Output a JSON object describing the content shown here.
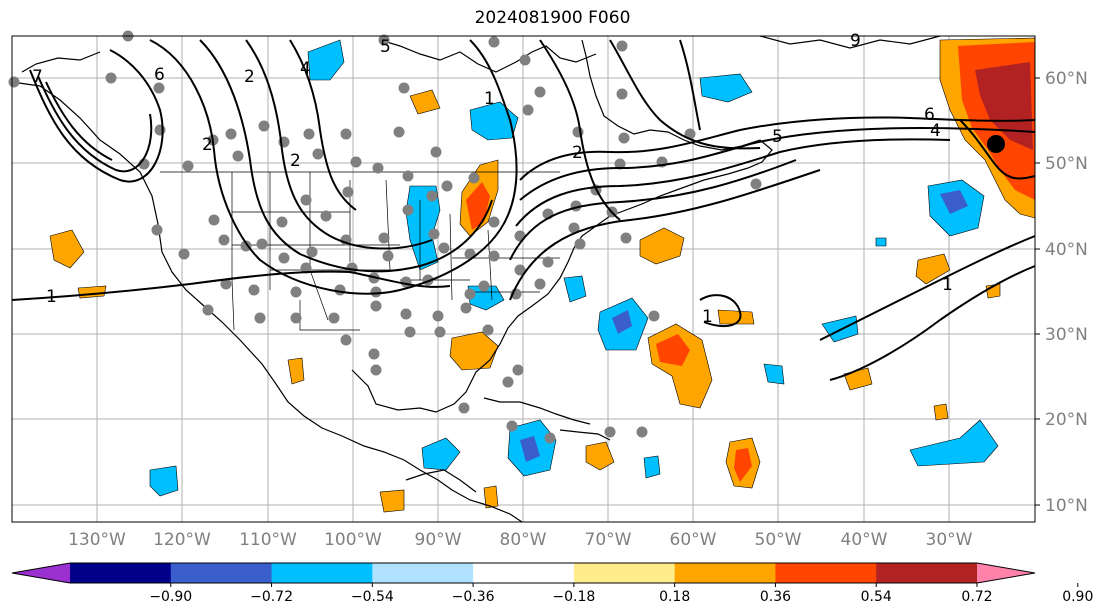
{
  "title": "2024081900 F060",
  "lat_labels": [
    "60°N",
    "50°N",
    "40°N",
    "30°N",
    "20°N",
    "10°N"
  ],
  "lon_labels": [
    "130°W",
    "120°W",
    "110°W",
    "100°W",
    "90°W",
    "80°W",
    "70°W",
    "60°W",
    "50°W",
    "40°W",
    "30°W"
  ],
  "colorbar": {
    "tick_labels": [
      "−0.90",
      "−0.72",
      "−0.54",
      "−0.36",
      "−0.18",
      "0.18",
      "0.36",
      "0.54",
      "0.72",
      "0.90"
    ],
    "colors": [
      "#9b30d0",
      "#00008b",
      "#3a5fcd",
      "#00bfff",
      "#b0e2ff",
      "#ffffff",
      "#ffec8b",
      "#ffa500",
      "#ff4500",
      "#b22222",
      "#ff82ab"
    ],
    "extend": "both"
  },
  "contour_labels": [
    "1",
    "1",
    "1",
    "1",
    "2",
    "2",
    "2",
    "2",
    "4",
    "4",
    "5",
    "5",
    "6",
    "6",
    "7",
    "9"
  ],
  "colors": {
    "gridline": "#b0b0b0",
    "axis_label": "#808080",
    "station_dot": "#808080",
    "contour": "#000000",
    "marker": "#000000"
  }
}
